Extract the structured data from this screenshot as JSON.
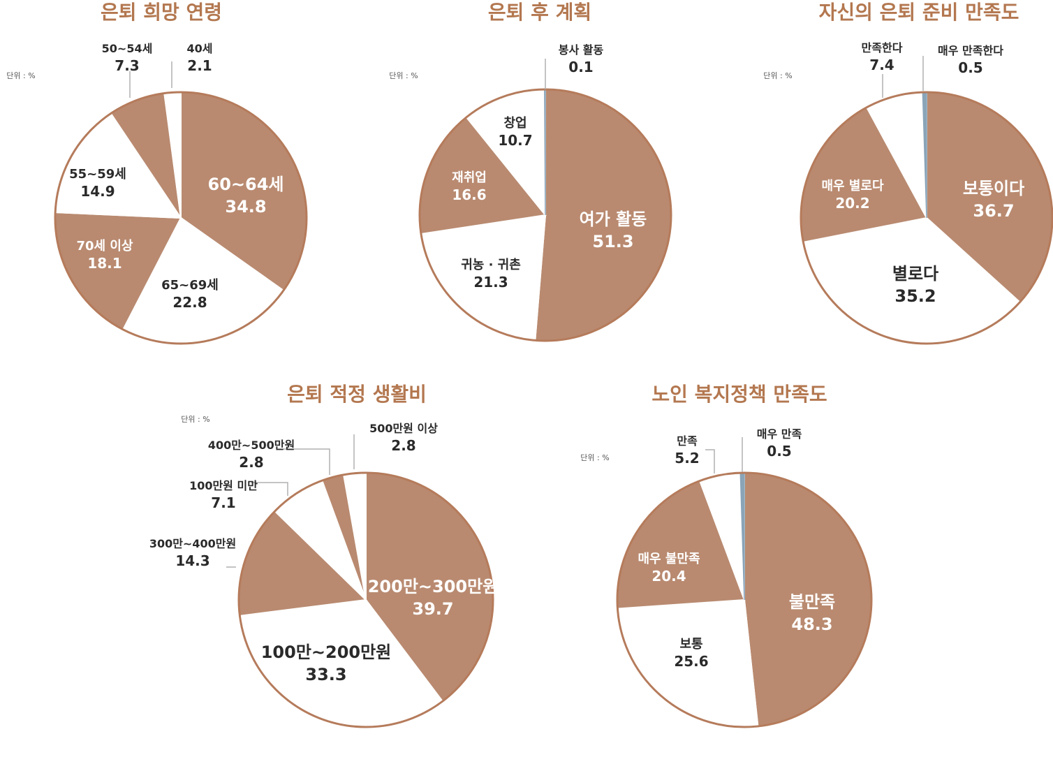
{
  "unit_label": "단위 : %",
  "colors": {
    "filled": "#b98a70",
    "empty": "#ffffff",
    "outline": "#b57b5b",
    "tiny": "#8aa4b8",
    "title": "#b3774f",
    "leader": "#b0b0b0"
  },
  "chart_data": [
    {
      "type": "pie",
      "title": "은퇴 희망 연령",
      "slices": [
        {
          "label": "60~64세",
          "value": 34.8,
          "filled": true
        },
        {
          "label": "65~69세",
          "value": 22.8,
          "filled": false
        },
        {
          "label": "70세 이상",
          "value": 18.1,
          "filled": true
        },
        {
          "label": "55~59세",
          "value": 14.9,
          "filled": false
        },
        {
          "label": "50~54세",
          "value": 7.3,
          "filled": true
        },
        {
          "label": "40세",
          "value": 2.1,
          "filled": false
        }
      ]
    },
    {
      "type": "pie",
      "title": "은퇴 후 계획",
      "slices": [
        {
          "label": "여가 활동",
          "value": 51.3,
          "filled": true
        },
        {
          "label": "귀농 · 귀촌",
          "value": 21.3,
          "filled": false
        },
        {
          "label": "재취업",
          "value": 16.6,
          "filled": true
        },
        {
          "label": "창업",
          "value": 10.7,
          "filled": false
        },
        {
          "label": "봉사 활동",
          "value": 0.1,
          "filled": false,
          "tiny": true
        }
      ]
    },
    {
      "type": "pie",
      "title": "자신의 은퇴 준비 만족도",
      "slices": [
        {
          "label": "보통이다",
          "value": 36.7,
          "filled": true
        },
        {
          "label": "별로다",
          "value": 35.2,
          "filled": false
        },
        {
          "label": "매우 별로다",
          "value": 20.2,
          "filled": true
        },
        {
          "label": "만족한다",
          "value": 7.4,
          "filled": false
        },
        {
          "label": "매우 만족한다",
          "value": 0.5,
          "filled": false,
          "tiny": true
        }
      ]
    },
    {
      "type": "pie",
      "title": "은퇴 적정 생활비",
      "slices": [
        {
          "label": "200만~300만원",
          "value": 39.7,
          "filled": true
        },
        {
          "label": "100만~200만원",
          "value": 33.3,
          "filled": false
        },
        {
          "label": "300만~400만원",
          "value": 14.3,
          "filled": true
        },
        {
          "label": "100만원 미만",
          "value": 7.1,
          "filled": false
        },
        {
          "label": "400만~500만원",
          "value": 2.8,
          "filled": true
        },
        {
          "label": "500만원 이상",
          "value": 2.8,
          "filled": false
        }
      ]
    },
    {
      "type": "pie",
      "title": "노인 복지정책 만족도",
      "slices": [
        {
          "label": "불만족",
          "value": 48.3,
          "filled": true
        },
        {
          "label": "보통",
          "value": 25.6,
          "filled": false
        },
        {
          "label": "매우 불만족",
          "value": 20.4,
          "filled": true
        },
        {
          "label": "만족",
          "value": 5.2,
          "filled": false
        },
        {
          "label": "매우 만족",
          "value": 0.5,
          "filled": false,
          "tiny": true
        }
      ]
    }
  ]
}
